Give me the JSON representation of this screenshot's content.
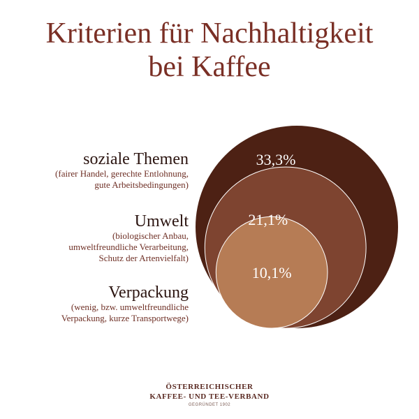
{
  "title_line1": "Kriterien für Nachhaltigkeit",
  "title_line2": "bei Kaffee",
  "chart_data": {
    "type": "nested-bubble",
    "title": "Kriterien für Nachhaltigkeit bei Kaffee",
    "unit": "%",
    "categories": [
      "soziale Themen",
      "Umwelt",
      "Verpackung"
    ],
    "values": [
      33.3,
      21.1,
      10.1
    ],
    "value_labels": [
      "33,3%",
      "21,1%",
      "10,1%"
    ],
    "descriptions": [
      [
        "(fairer Handel, gerechte Entlohnung,",
        "gute Arbeitsbedingungen)"
      ],
      [
        "(biologischer Anbau,",
        "umweltfreundliche Verarbeitung,",
        "Schutz der Artenvielfalt)"
      ],
      [
        "(wenig, bzw. umweltfreundliche",
        "Verpackung, kurze Transportwege)"
      ]
    ],
    "colors": [
      "#4d2114",
      "#7e4430",
      "#b67c55"
    ]
  },
  "footer": {
    "line1": "ÖSTERREICHISCHER",
    "line2": "KAFFEE- UND TEE-VERBAND",
    "line3": "GEGRÜNDET 1902"
  }
}
